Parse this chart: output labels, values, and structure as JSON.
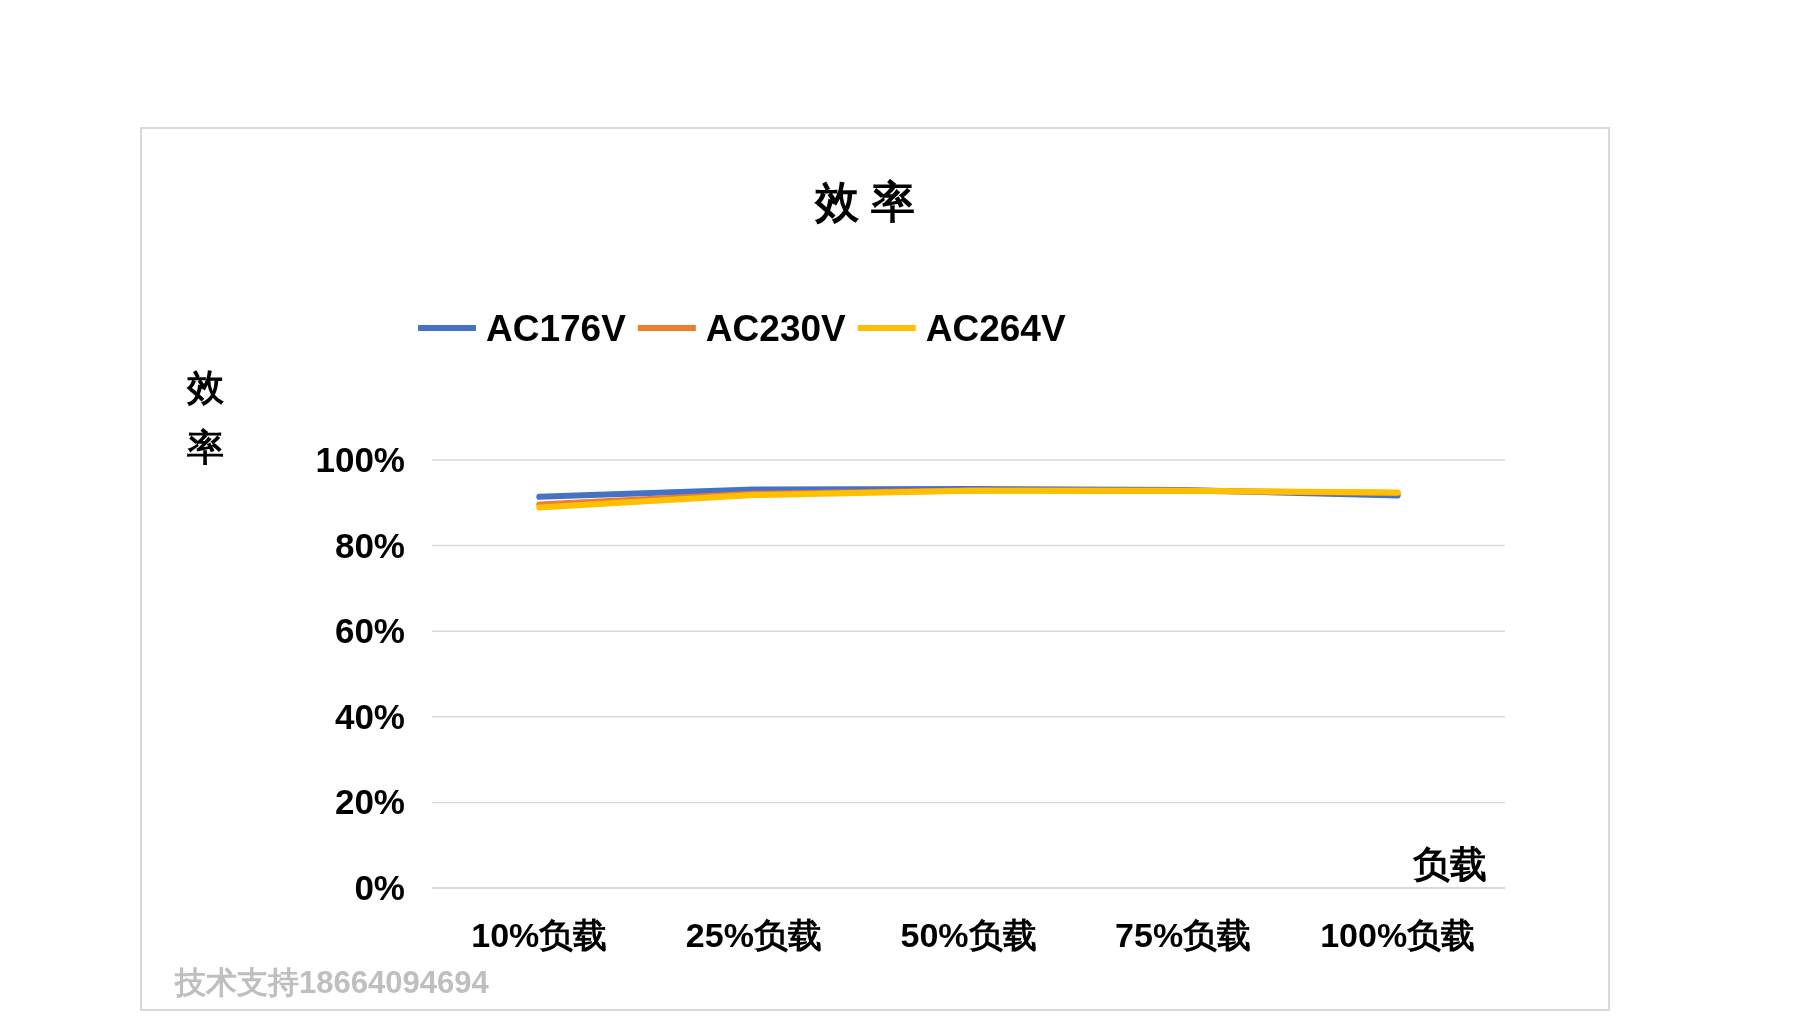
{
  "chart_data": {
    "type": "line",
    "title": "效 率",
    "ylabel": "效率",
    "xlabel": "负载",
    "categories": [
      "10%负载",
      "25%负载",
      "50%负载",
      "75%负载",
      "100%负载"
    ],
    "series": [
      {
        "name": "AC176V",
        "color": "#4472c4",
        "values": [
          91.4,
          93.1,
          93.2,
          93.0,
          91.7
        ]
      },
      {
        "name": "AC230V",
        "color": "#ed7d31",
        "values": [
          89.6,
          92.1,
          92.9,
          92.8,
          92.3
        ]
      },
      {
        "name": "AC264V",
        "color": "#ffc000",
        "values": [
          88.9,
          91.8,
          92.8,
          92.8,
          92.4
        ]
      }
    ],
    "ylim": [
      0,
      100
    ],
    "yticks": [
      {
        "value": 0,
        "label": "0%"
      },
      {
        "value": 20,
        "label": "20%"
      },
      {
        "value": 40,
        "label": "40%"
      },
      {
        "value": 60,
        "label": "60%"
      },
      {
        "value": 80,
        "label": "80%"
      },
      {
        "value": 100,
        "label": "100%"
      }
    ],
    "grid": "y",
    "legend": "top",
    "marker": "none",
    "line_style": "solid",
    "annotations": [
      "技术支持18664094694"
    ]
  }
}
